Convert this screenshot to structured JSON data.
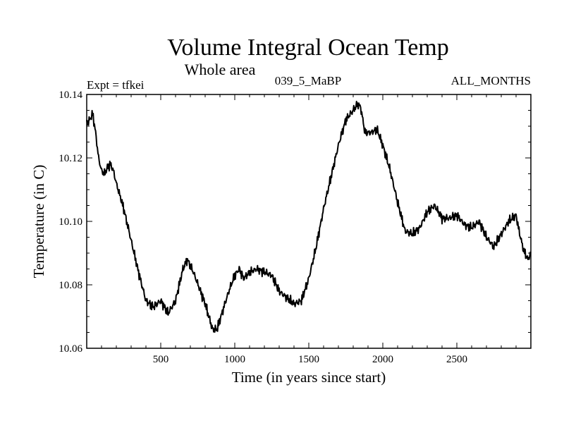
{
  "chart_data": {
    "type": "line",
    "title": "Volume Integral Ocean Temp",
    "subtitle": "Whole area",
    "left_label": "Expt = tfkei",
    "center_label": "039_5_MaBP",
    "right_label": "ALL_MONTHS",
    "xlabel": "Time (in years since start)",
    "ylabel": "Temperature (in C)",
    "xlim": [
      0,
      3000
    ],
    "ylim": [
      10.06,
      10.14
    ],
    "x_ticks": [
      500,
      1000,
      1500,
      2000,
      2500
    ],
    "x_tick_labels": [
      "500",
      "1000",
      "1500",
      "2000",
      "2500"
    ],
    "y_ticks": [
      10.06,
      10.08,
      10.1,
      10.12,
      10.14
    ],
    "y_tick_labels": [
      "10.06",
      "10.08",
      "10.10",
      "10.12",
      "10.14"
    ],
    "grid": false,
    "series": [
      {
        "color": "#000000",
        "x": [
          0,
          20,
          40,
          60,
          80,
          100,
          120,
          140,
          160,
          180,
          200,
          250,
          300,
          350,
          400,
          450,
          500,
          550,
          600,
          650,
          680,
          720,
          760,
          800,
          850,
          880,
          920,
          960,
          1000,
          1030,
          1060,
          1100,
          1150,
          1200,
          1250,
          1300,
          1350,
          1400,
          1450,
          1500,
          1550,
          1600,
          1650,
          1700,
          1750,
          1800,
          1830,
          1850,
          1880,
          1920,
          1960,
          2000,
          2050,
          2100,
          2150,
          2200,
          2250,
          2300,
          2350,
          2400,
          2450,
          2500,
          2550,
          2600,
          2650,
          2700,
          2750,
          2800,
          2850,
          2900,
          2920,
          2950,
          2980,
          3000
        ],
        "y": [
          10.131,
          10.132,
          10.134,
          10.128,
          10.12,
          10.116,
          10.115,
          10.117,
          10.118,
          10.116,
          10.112,
          10.104,
          10.094,
          10.084,
          10.075,
          10.073,
          10.075,
          10.071,
          10.075,
          10.085,
          10.088,
          10.084,
          10.079,
          10.074,
          10.066,
          10.066,
          10.072,
          10.078,
          10.083,
          10.085,
          10.082,
          10.084,
          10.085,
          10.084,
          10.083,
          10.078,
          10.076,
          10.074,
          10.075,
          10.082,
          10.092,
          10.104,
          10.114,
          10.124,
          10.132,
          10.135,
          10.137,
          10.136,
          10.128,
          10.128,
          10.129,
          10.124,
          10.116,
          10.106,
          10.097,
          10.096,
          10.098,
          10.103,
          10.105,
          10.101,
          10.101,
          10.102,
          10.099,
          10.098,
          10.1,
          10.095,
          10.092,
          10.096,
          10.1,
          10.102,
          10.097,
          10.091,
          10.088,
          10.09
        ]
      }
    ]
  }
}
